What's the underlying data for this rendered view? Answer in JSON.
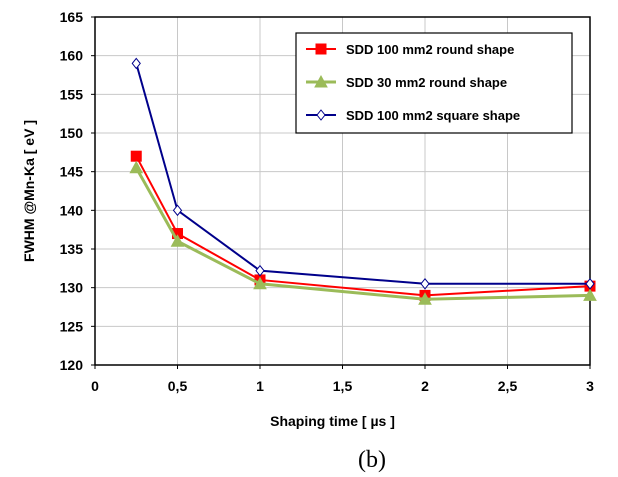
{
  "chart_data": {
    "type": "line",
    "title": "",
    "xlabel": "Shaping time [ µs ]",
    "ylabel": "FWHM @Mn-Ka  [ eV ]",
    "caption": "(b)",
    "xlim": [
      0,
      3
    ],
    "ylim": [
      120,
      165
    ],
    "xticks": [
      0,
      0.5,
      1,
      1.5,
      2,
      2.5,
      3
    ],
    "xtick_labels": [
      "0",
      "0,5",
      "1",
      "1,5",
      "2",
      "2,5",
      "3"
    ],
    "yticks": [
      120,
      125,
      130,
      135,
      140,
      145,
      150,
      155,
      160,
      165
    ],
    "ytick_labels": [
      "120",
      "125",
      "130",
      "135",
      "140",
      "145",
      "150",
      "155",
      "160",
      "165"
    ],
    "grid": true,
    "legend_position": "top-right",
    "x": [
      0.25,
      0.5,
      1,
      2,
      3
    ],
    "series": [
      {
        "name": "SDD 100 mm2 round shape",
        "color": "#ff0000",
        "marker": "square",
        "values": [
          147.0,
          137.0,
          131.0,
          129.0,
          130.2
        ]
      },
      {
        "name": "SDD 30 mm2 round shape",
        "color": "#9bbb59",
        "marker": "triangle",
        "values": [
          145.5,
          136.0,
          130.5,
          128.5,
          129.0
        ]
      },
      {
        "name": "SDD 100 mm2 square shape",
        "color": "#00008b",
        "marker": "diamond",
        "values": [
          159.0,
          140.0,
          132.2,
          130.5,
          130.5
        ]
      }
    ]
  }
}
